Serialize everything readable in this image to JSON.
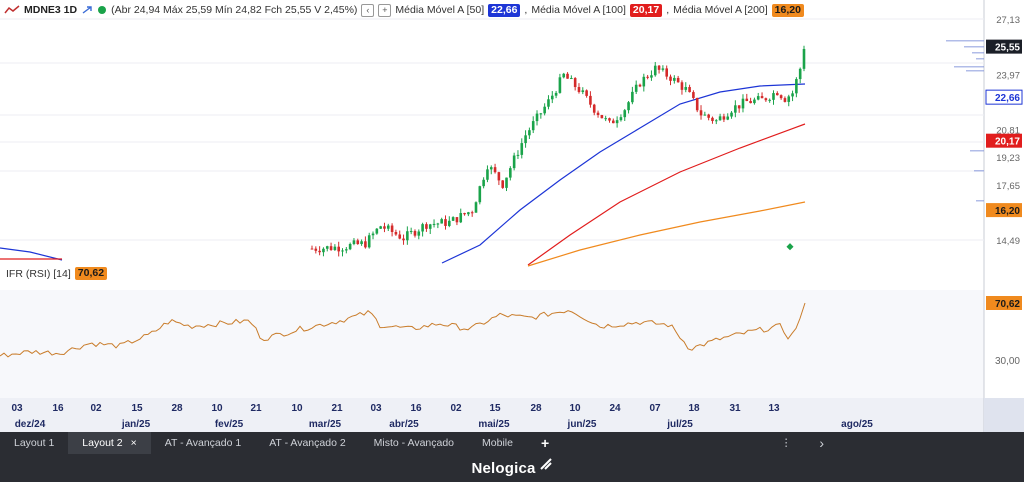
{
  "header": {
    "symbol": "MDNE3 1D",
    "ohlc_text": "(Abr 24,94 Máx 25,59 Mín 24,82 Fch 25,55 V 2,45%)",
    "ma50_label": "Média Móvel A [50]",
    "ma50_value": "22,66",
    "ma100_label": "Média Móvel A [100]",
    "ma100_value": "20,17",
    "ma200_label": "Média Móvel A [200]",
    "ma200_value": "16,20",
    "sep": ","
  },
  "rsi": {
    "label": "IFR (RSI) [14]",
    "value": "70,62"
  },
  "price_axis": {
    "ticks": [
      "27,13",
      "25,55",
      "23,97",
      "22,66",
      "20,81",
      "20,17",
      "19,23",
      "17,65",
      "16,20",
      "14,49"
    ],
    "rsi_ticks": [
      "70,62",
      "30,00"
    ]
  },
  "x_axis": {
    "days": [
      "03",
      "16",
      "02",
      "15",
      "28",
      "10",
      "21",
      "10",
      "21",
      "03",
      "16",
      "02",
      "15",
      "28",
      "10",
      "24",
      "07",
      "18",
      "31",
      "13"
    ],
    "months": [
      "dez/24",
      "jan/25",
      "fev/25",
      "mar/25",
      "abr/25",
      "mai/25",
      "jun/25",
      "jul/25",
      "ago/25"
    ]
  },
  "colors": {
    "ma50": "#1d35d6",
    "ma100": "#e11d1d",
    "ma200": "#f08a1e",
    "rsi": "#c97c2a",
    "up": "#1aa34a",
    "down": "#d42a2a"
  },
  "tabs": [
    "Layout 1",
    "Layout 2",
    "AT - Avançado 1",
    "AT - Avançado 2",
    "Misto - Avançado",
    "Mobile"
  ],
  "tab_icons": {
    "close": "×",
    "add": "+",
    "more": "⋮",
    "next": "›"
  },
  "footer": {
    "brand": "Nelogica"
  },
  "chart_data": {
    "type": "line",
    "title": "MDNE3 1D",
    "series": [
      {
        "name": "Média Móvel A [50]",
        "last": 22.66
      },
      {
        "name": "Média Móvel A [100]",
        "last": 20.17
      },
      {
        "name": "Média Móvel A [200]",
        "last": 16.2
      },
      {
        "name": "IFR (RSI) [14]",
        "last": 70.62
      }
    ],
    "last_close": 25.55
  }
}
